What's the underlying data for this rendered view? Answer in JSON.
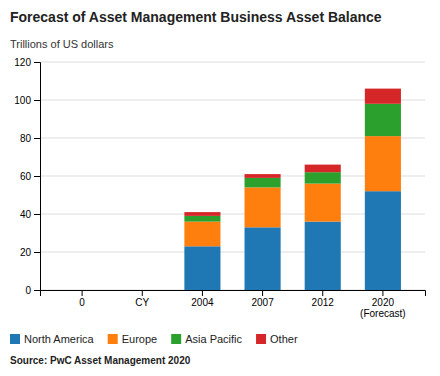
{
  "chart_data": {
    "type": "bar",
    "stacked": true,
    "title": "Forecast of Asset Management Business Asset Balance",
    "ylabel": "Trillions of US dollars",
    "source": "Source: PwC Asset Management 2020",
    "categories": [
      "0",
      "CY",
      "2004",
      "2007",
      "2012",
      "2020\n(Forecast)"
    ],
    "series": [
      {
        "name": "North America",
        "values": [
          0,
          0,
          23,
          33,
          36,
          52
        ]
      },
      {
        "name": "Europe",
        "values": [
          0,
          0,
          13,
          21,
          20,
          29
        ]
      },
      {
        "name": "Asia Pacific",
        "values": [
          0,
          0,
          3,
          5,
          6,
          17
        ]
      },
      {
        "name": "Other",
        "values": [
          0,
          0,
          2,
          2,
          4,
          8
        ]
      }
    ],
    "ylim": [
      0,
      120
    ],
    "yticks": [
      0,
      20,
      40,
      60,
      80,
      100,
      120
    ],
    "grid": true,
    "legend": "bottom"
  }
}
